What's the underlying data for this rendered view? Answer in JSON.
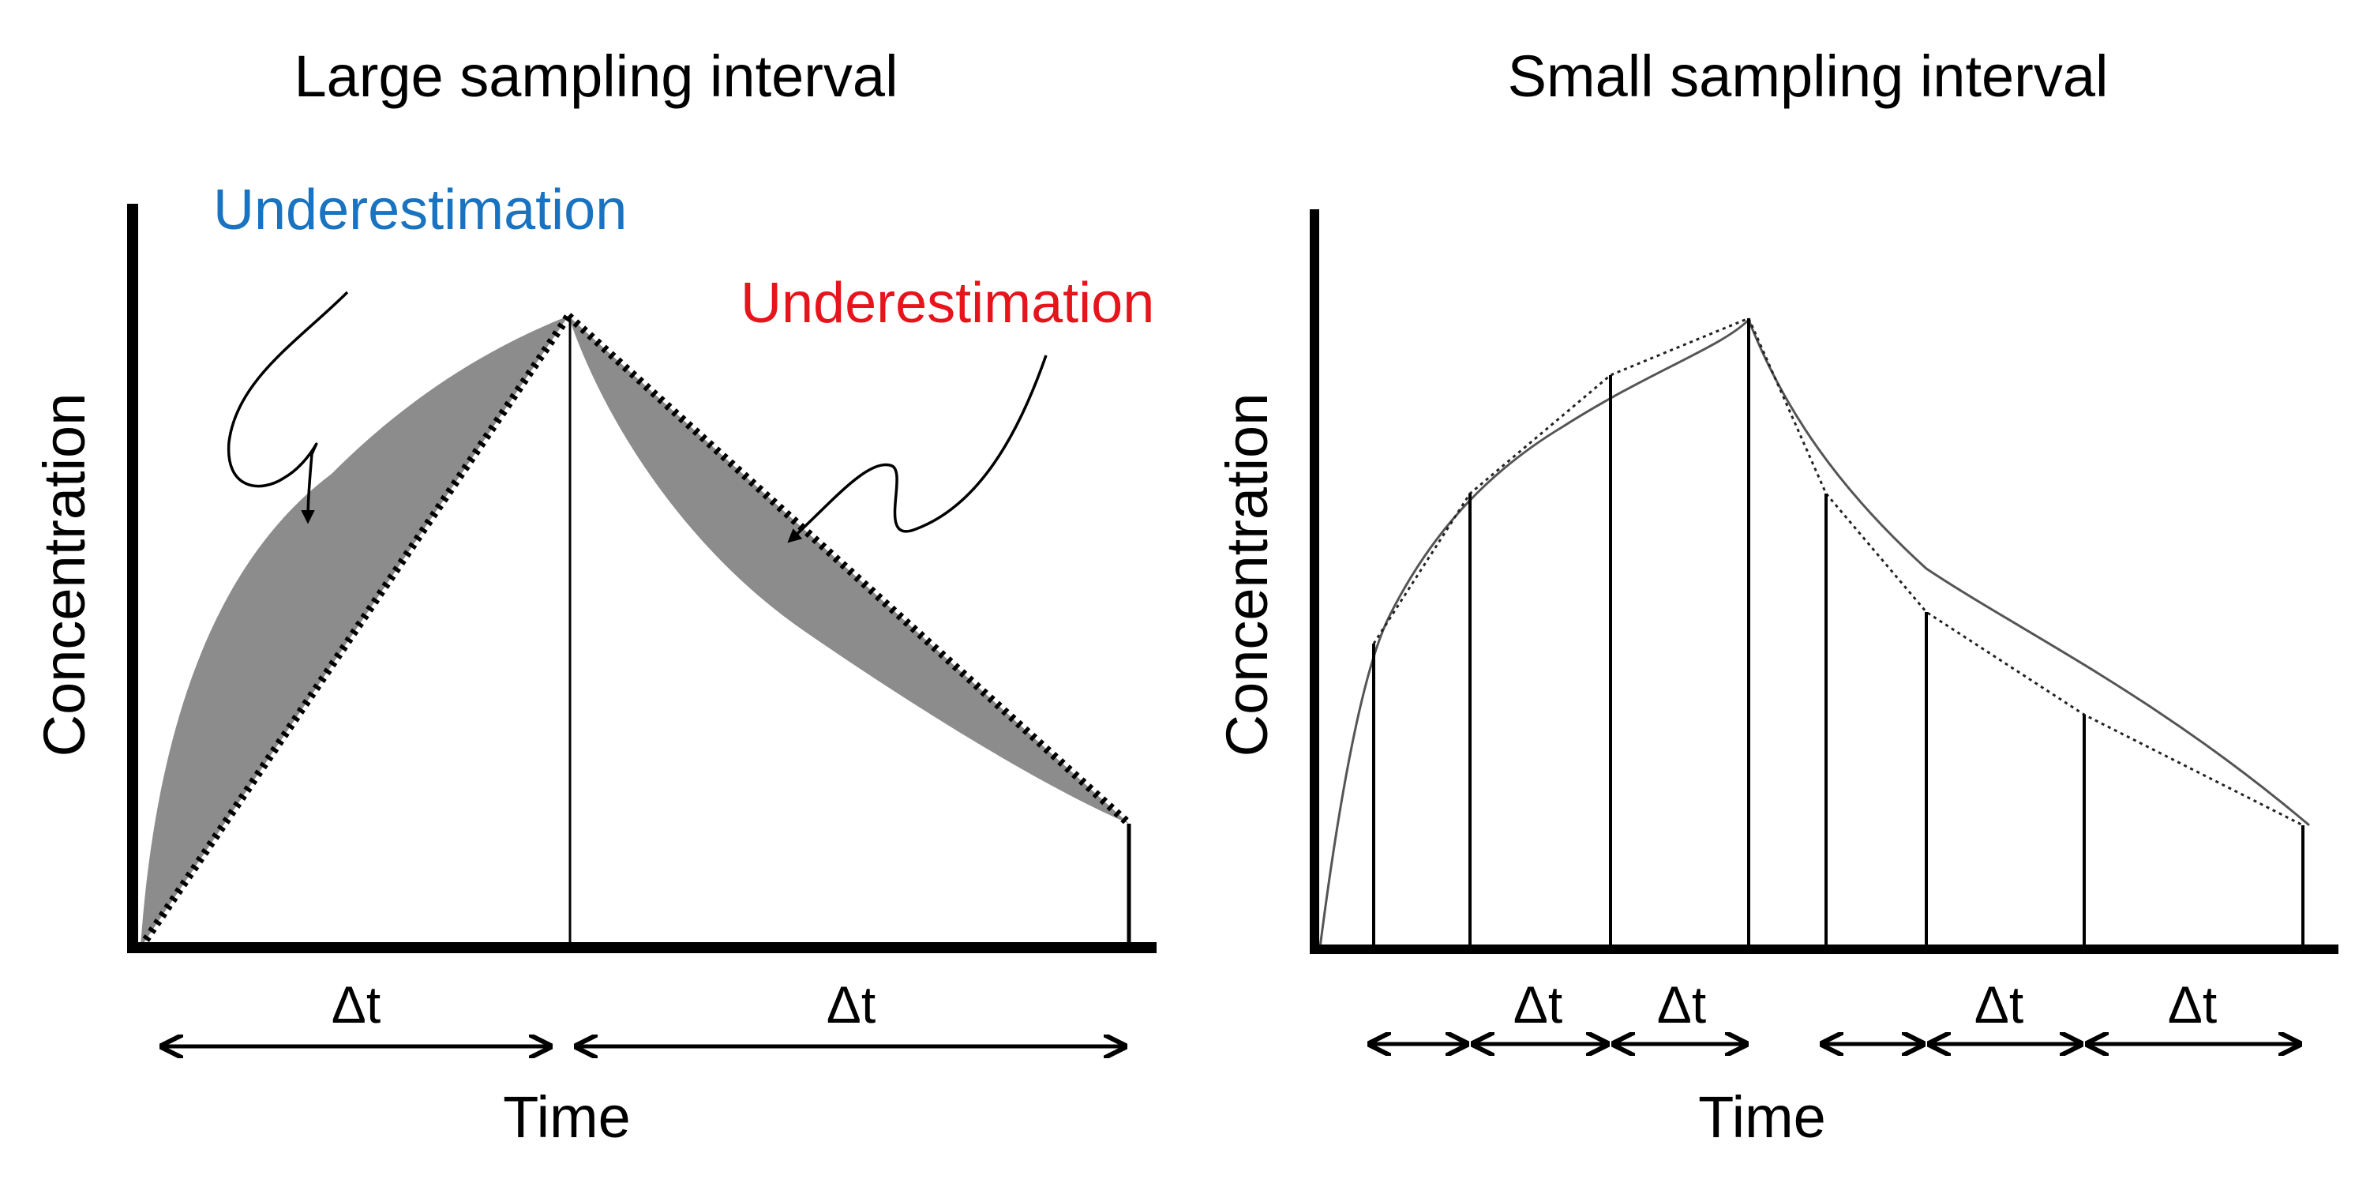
{
  "left_panel": {
    "title": "Large sampling interval",
    "y_label": "Concentration",
    "x_label": "Time",
    "annotation_rise": "Underestimation",
    "annotation_fall": "Underestimation",
    "interval_labels": [
      "Δt",
      "Δt"
    ]
  },
  "right_panel": {
    "title": "Small sampling interval",
    "y_label": "Concentration",
    "x_label": "Time",
    "interval_labels": [
      "Δt",
      "Δt",
      "Δt",
      "Δt"
    ]
  },
  "colors": {
    "rise_annotation": "#1a73c0",
    "fall_annotation": "#e8141c",
    "shaded_error": "#8c8c8c",
    "line": "#000000"
  }
}
